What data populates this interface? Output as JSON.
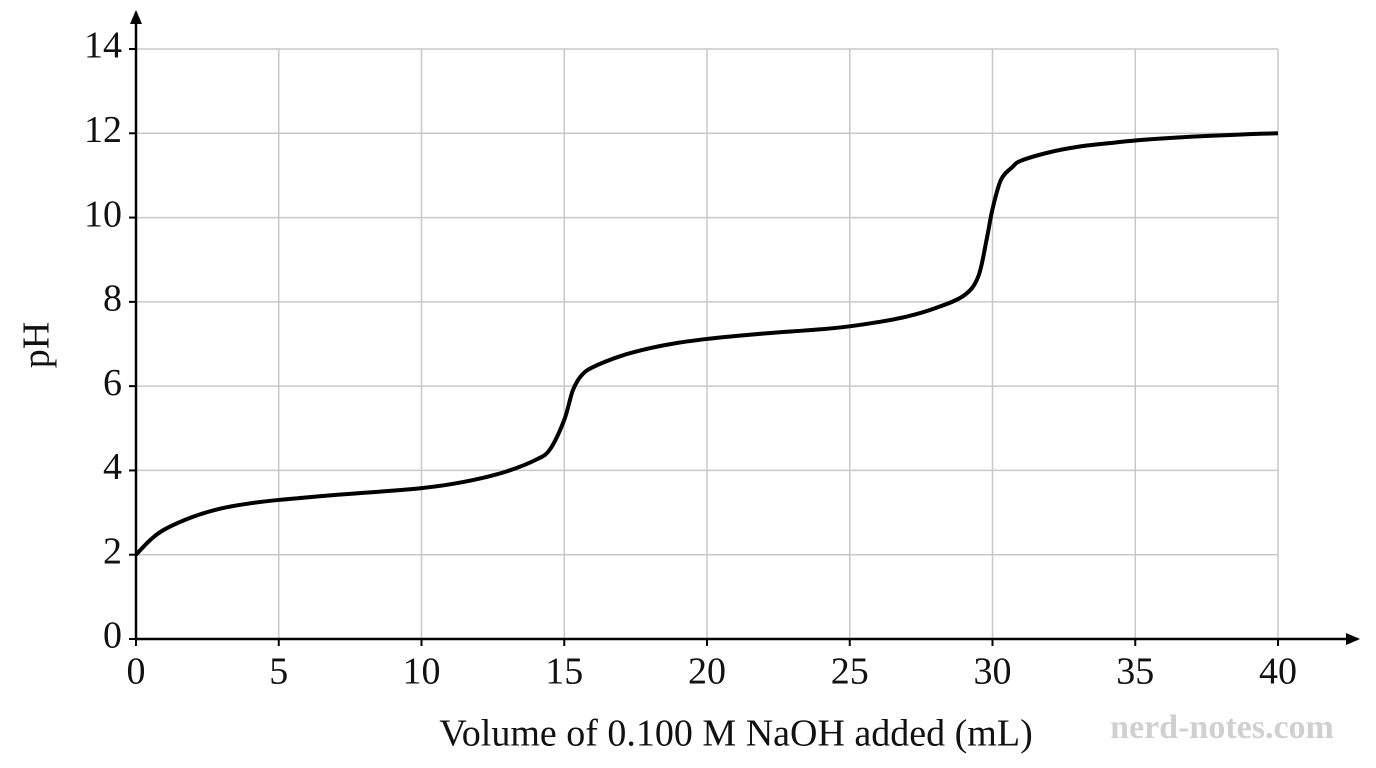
{
  "chart_data": {
    "type": "line",
    "xlabel": "Volume of 0.100 M NaOH added (mL)",
    "ylabel": "pH",
    "watermark": "nerd-notes.com",
    "x": [
      0,
      0.5,
      1,
      2,
      3,
      4,
      5,
      6,
      7,
      8,
      9,
      10,
      11,
      12,
      13,
      14,
      14.5,
      15,
      15.3,
      15.6,
      16,
      17,
      18,
      19,
      20,
      21,
      22,
      23,
      24,
      25,
      26,
      27,
      28,
      29,
      29.5,
      29.8,
      30,
      30.3,
      30.7,
      31,
      32,
      33,
      34,
      35,
      36,
      37,
      38,
      39,
      40
    ],
    "series": [
      {
        "color": "#000000",
        "values": [
          2.0,
          2.35,
          2.6,
          2.9,
          3.1,
          3.22,
          3.3,
          3.36,
          3.42,
          3.47,
          3.52,
          3.58,
          3.67,
          3.8,
          3.98,
          4.25,
          4.5,
          5.2,
          5.9,
          6.25,
          6.45,
          6.72,
          6.9,
          7.03,
          7.12,
          7.19,
          7.25,
          7.3,
          7.35,
          7.42,
          7.52,
          7.65,
          7.85,
          8.15,
          8.6,
          9.5,
          10.2,
          10.9,
          11.2,
          11.35,
          11.55,
          11.68,
          11.76,
          11.83,
          11.88,
          11.92,
          11.95,
          11.98,
          12.0
        ]
      }
    ],
    "xlim": [
      0,
      40
    ],
    "xticks": [
      0,
      5,
      10,
      15,
      20,
      25,
      30,
      35,
      40
    ],
    "ylim": [
      0,
      14
    ],
    "yticks": [
      0,
      2,
      4,
      6,
      8,
      10,
      12,
      14
    ],
    "grid": true
  }
}
